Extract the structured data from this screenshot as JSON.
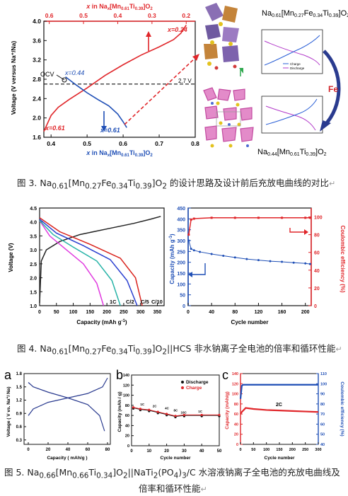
{
  "colors": {
    "red": "#e0262a",
    "blue": "#1f4fb6",
    "dark_blue": "#2a3b8f",
    "black": "#111111"
  },
  "fig3": {
    "caption": "图 3. Na₀.₆₁[Mn₀.₂₇Fe₀.₃₄Ti₀.₃₉]O₂ 的设计思路及设计前后充放电曲线的对比",
    "caption_parts": {
      "prefix": "图 3. Na",
      "s1": "0.61",
      "t1": "[Mn",
      "s2": "0.27",
      "t2": "Fe",
      "s3": "0.34",
      "t3": "Ti",
      "s4": "0.39",
      "t4": "]O",
      "s5": "2",
      "suffix": " 的设计思路及设计前后充放电曲线的对比"
    },
    "top_axis_label": "x in Na",
    "top_axis_label_sub1": "x",
    "top_axis_label_mid": "[Mn",
    "top_axis_label_sub2": "0.61",
    "top_axis_label_mid2": "Ti",
    "top_axis_label_sub3": "0.39",
    "top_axis_label_end": "]O",
    "top_axis_label_sub4": "2",
    "bottom_axis_label": "x in Na",
    "ylabel": "Voltage (V versus Na⁺/Na)",
    "annotations": {
      "ocv": "OCV",
      "x044": "x=0.44",
      "x024": "x=0.24",
      "x061_left": "x=0.61",
      "x061_right": "x=0.61",
      "v27": "2.7 V"
    },
    "right_top_formula": "Na0.61[Mn0.27Fe0.34Ti0.39]O2",
    "right_bottom_formula": "Na0.44[Mn0.61Ti0.39]O2",
    "fe_label": "Fe",
    "inset_legend": [
      "Charge",
      "Discharge"
    ]
  },
  "fig4": {
    "caption_parts": {
      "prefix": "图 4. Na",
      "s1": "0.61",
      "t1": "[Mn",
      "s2": "0.27",
      "t2": "Fe",
      "s3": "0.34",
      "t3": "Ti",
      "s4": "0.39",
      "t4": "]O",
      "s5": "2",
      "suffix": "||HCS 非水钠离子全电池的倍率和循环性能"
    },
    "rate_labels": [
      "1C",
      "C/2",
      "C/5",
      "C/10"
    ]
  },
  "fig5": {
    "caption_line1_parts": {
      "prefix": "图 5. Na",
      "s1": "0.66",
      "t1": "[Mn",
      "s2": "0.66",
      "t2": "Ti",
      "s3": "0.34",
      "t3": "]O",
      "s4": "2",
      "t4": "||NaTi",
      "s5": "2",
      "t5": "(PO",
      "s6": "4",
      "t6": ")",
      "s7": "3",
      "suffix": "/C 水溶液钠离子全电池的充放电曲线及"
    },
    "caption_line2": "倍率和循环性能",
    "panel_letters": [
      "a",
      "b",
      "c"
    ],
    "legend_b": [
      "Discharge",
      "Charge"
    ],
    "c_label": "2C"
  },
  "chart_data": [
    {
      "id": "fig3-voltage",
      "type": "line",
      "xlabel": "x in Naₓ[Mn₀.₆₁Ti₀.₃₉]O₂",
      "x2label": "x in Naₓ[Mn₀.₆₁Ti₀.₃₉]O₂",
      "ylabel": "Voltage (V versus Na⁺/Na)",
      "xlim": [
        0.38,
        0.8
      ],
      "x2lim": [
        0.6,
        0.2
      ],
      "ylim": [
        1.6,
        4.0
      ],
      "xticks": [
        0.4,
        0.5,
        0.6,
        0.7,
        0.8
      ],
      "x2ticks": [
        0.6,
        0.5,
        0.4,
        0.3,
        0.2
      ],
      "yticks": [
        1.6,
        2.0,
        2.4,
        2.8,
        3.2,
        3.6,
        4.0
      ],
      "hline": 2.7,
      "series": [
        {
          "color": "red",
          "x": [
            0.38,
            0.4,
            0.42,
            0.45,
            0.5,
            0.55,
            0.6,
            0.65,
            0.7,
            0.74,
            0.76,
            0.775
          ],
          "y": [
            1.72,
            2.05,
            2.22,
            2.38,
            2.62,
            2.88,
            3.1,
            3.3,
            3.47,
            3.62,
            3.75,
            3.92
          ]
        },
        {
          "color": "blue",
          "x": [
            0.44,
            0.47,
            0.5,
            0.53,
            0.56,
            0.585,
            0.6,
            0.61
          ],
          "y": [
            2.85,
            2.68,
            2.52,
            2.38,
            2.25,
            2.08,
            1.92,
            1.8
          ]
        }
      ]
    },
    {
      "id": "fig4-rate",
      "type": "line",
      "xlabel": "Capacity (mAh g⁻¹)",
      "ylabel": "Voltage (V)",
      "xlim": [
        0,
        370
      ],
      "ylim": [
        1.0,
        4.5
      ],
      "xticks": [
        0,
        50,
        100,
        150,
        200,
        250,
        300,
        350
      ],
      "yticks": [
        1.0,
        1.5,
        2.0,
        2.5,
        3.0,
        3.5,
        4.0,
        4.5
      ],
      "series": [
        {
          "name": "charge",
          "color": "#222222",
          "x": [
            0,
            5,
            20,
            60,
            120,
            200,
            280,
            330,
            360
          ],
          "y": [
            1.1,
            2.6,
            3.0,
            3.3,
            3.55,
            3.75,
            3.95,
            4.1,
            4.2
          ]
        },
        {
          "name": "1C",
          "color": "#e03adf",
          "x": [
            0,
            30,
            80,
            130,
            170,
            190
          ],
          "y": [
            4.05,
            3.5,
            3.0,
            2.5,
            1.8,
            1.0
          ]
        },
        {
          "name": "C/2",
          "color": "#27b3a7",
          "x": [
            0,
            40,
            100,
            170,
            215,
            240
          ],
          "y": [
            4.05,
            3.55,
            3.1,
            2.6,
            1.9,
            1.0
          ]
        },
        {
          "name": "C/5",
          "color": "#2a3fd0",
          "x": [
            0,
            50,
            130,
            210,
            260,
            290
          ],
          "y": [
            4.1,
            3.6,
            3.15,
            2.65,
            1.9,
            1.0
          ]
        },
        {
          "name": "C/10",
          "color": "#d9221c",
          "x": [
            0,
            60,
            150,
            240,
            285,
            305
          ],
          "y": [
            4.15,
            3.65,
            3.2,
            2.7,
            2.0,
            1.0
          ]
        }
      ]
    },
    {
      "id": "fig4-cycle",
      "type": "scatter",
      "xlabel": "Cycle number",
      "ylabel": "Capacity (mAh g⁻¹)",
      "y2label": "Coulombic efficiency (%)",
      "xlim": [
        0,
        210
      ],
      "ylim": [
        0,
        450
      ],
      "y2lim": [
        0,
        110
      ],
      "xticks": [
        0,
        40,
        80,
        120,
        160,
        200
      ],
      "yticks": [
        0,
        50,
        100,
        150,
        200,
        250,
        300,
        350,
        400,
        450
      ],
      "y2ticks": [
        0,
        20,
        40,
        60,
        80,
        100
      ],
      "series": [
        {
          "name": "capacity",
          "color": "#1f4fb6",
          "x": [
            1,
            5,
            10,
            20,
            40,
            60,
            80,
            100,
            120,
            140,
            160,
            180,
            200,
            208
          ],
          "y": [
            300,
            262,
            255,
            248,
            238,
            230,
            222,
            215,
            210,
            205,
            202,
            198,
            195,
            192
          ]
        },
        {
          "name": "coulombic efficiency",
          "color": "#e0262a",
          "x": [
            1,
            5,
            10,
            40,
            80,
            120,
            160,
            200,
            208
          ],
          "y": [
            80,
            97,
            98,
            99,
            99,
            99,
            99,
            99,
            99
          ]
        }
      ]
    },
    {
      "id": "fig5-a",
      "type": "line",
      "xlabel": "Capacity ( mAh/g )",
      "ylabel": "Voltage ( V vs. Na⁺/ Na)",
      "xlim": [
        0,
        80
      ],
      "ylim": [
        0.2,
        1.8
      ],
      "xticks": [
        0,
        20,
        40,
        60,
        80
      ],
      "yticks": [
        0.3,
        0.6,
        0.9,
        1.2,
        1.5,
        1.8
      ],
      "series": [
        {
          "name": "charge",
          "color": "#2a3b8f",
          "x": [
            0,
            5,
            20,
            40,
            60,
            75,
            80
          ],
          "y": [
            0.85,
            1.0,
            1.15,
            1.25,
            1.35,
            1.5,
            1.7
          ]
        },
        {
          "name": "discharge",
          "color": "#2a3b8f",
          "x": [
            0,
            5,
            20,
            40,
            60,
            72,
            77
          ],
          "y": [
            1.6,
            1.5,
            1.38,
            1.25,
            1.1,
            0.85,
            0.5
          ]
        }
      ]
    },
    {
      "id": "fig5-b",
      "type": "scatter",
      "xlabel": "Cycle number",
      "ylabel": "Capacity (mAh / g)",
      "xlim": [
        0,
        50
      ],
      "ylim": [
        0,
        140
      ],
      "xticks": [
        0,
        10,
        20,
        30,
        40,
        50
      ],
      "yticks": [
        0,
        20,
        40,
        60,
        80,
        100,
        120,
        140
      ],
      "rate_labels": [
        "1C",
        "2C",
        "4C",
        "8C",
        "10C",
        "1C"
      ],
      "series": [
        {
          "name": "Discharge",
          "color": "#111111",
          "x": [
            1,
            5,
            10,
            15,
            20,
            25,
            30,
            40,
            50
          ],
          "y": [
            75,
            72,
            70,
            66,
            62,
            58,
            60,
            60,
            60
          ]
        },
        {
          "name": "Charge",
          "color": "#e0262a",
          "x": [
            1,
            5,
            10,
            15,
            20,
            25,
            30,
            40,
            50
          ],
          "y": [
            76,
            73,
            71,
            67,
            63,
            59,
            61,
            61,
            61
          ]
        }
      ]
    },
    {
      "id": "fig5-c",
      "type": "line",
      "xlabel": "Cycle number",
      "ylabel": "Capacity (mAh/g)",
      "y2label": "Coulombic efficiency (%)",
      "xlim": [
        0,
        300
      ],
      "ylim": [
        0,
        140
      ],
      "y2lim": [
        40,
        110
      ],
      "xticks": [
        0,
        50,
        100,
        150,
        200,
        250,
        300
      ],
      "yticks": [
        0,
        20,
        40,
        60,
        80,
        100,
        120,
        140
      ],
      "y2ticks": [
        40,
        50,
        60,
        70,
        80,
        90,
        100,
        110
      ],
      "series": [
        {
          "name": "capacity",
          "color": "#e0262a",
          "x": [
            0,
            5,
            20,
            50,
            100,
            150,
            200,
            250,
            300
          ],
          "y": [
            60,
            64,
            72,
            70,
            68,
            67,
            66,
            65,
            64
          ]
        },
        {
          "name": "coulombic efficiency",
          "color": "#1f4fb6",
          "x": [
            0,
            5,
            10,
            50,
            100,
            150,
            200,
            250,
            300
          ],
          "y": [
            85,
            98,
            99,
            99,
            99,
            99,
            99,
            99,
            99
          ]
        }
      ]
    }
  ]
}
